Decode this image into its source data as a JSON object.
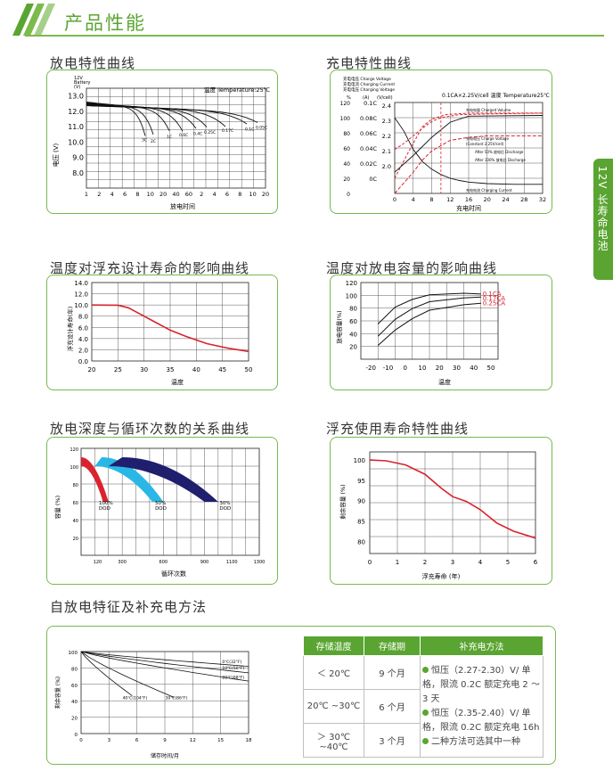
{
  "header": {
    "title": "产品性能"
  },
  "side_tab": {
    "label": "12V 长寿命电池"
  },
  "sections": {
    "discharge": "放电特性曲线",
    "charge": "充电特性曲线",
    "temp_life": "温度对浮充设计寿命的影响曲线",
    "temp_capacity": "温度对放电容量的影响曲线",
    "dod_cycles": "放电深度与循环次数的关系曲线",
    "float_life": "浮充使用寿命特性曲线",
    "self_discharge": "自放电特征及补充电方法"
  },
  "discharge_chart": {
    "corner_label": [
      "12V",
      "Battery",
      "(V)"
    ],
    "temp_note": "温度 Temperature:25℃",
    "ylabel": "电压 (V)",
    "xlabel": "放电时间",
    "y_ticks": [
      "13.0",
      "12.0",
      "11.0",
      "10.0",
      "9.0",
      "8.0"
    ],
    "x_ticks": [
      "1",
      "2",
      "4",
      "6",
      "8",
      "10",
      "20",
      "40",
      "60",
      "2",
      "4",
      "6",
      "8",
      "10",
      "20"
    ],
    "curve_labels": [
      "3C",
      "2C",
      "1C",
      "0.6C",
      "0.4C",
      "0.25C",
      "0.17C",
      "0.1C",
      "0.05C"
    ]
  },
  "charge_chart": {
    "axis_headers": [
      "充电电压 Charge Voltage",
      "充电电流 Charging Current",
      "充电电压 Charging Voltage"
    ],
    "unit_labels": [
      "%",
      "(A)",
      "(V/cell)"
    ],
    "note": "0.1CA×2.25V/cell  温度 Temperature25℃",
    "xlabel": "充电时间",
    "pct_ticks": [
      "120",
      "100",
      "80",
      "60",
      "40",
      "20",
      "0"
    ],
    "amp_ticks": [
      "0.1C",
      "0.08C",
      "0.06C",
      "0.04C",
      "0.02C",
      "0C"
    ],
    "volt_ticks": [
      "2.4",
      "2.3",
      "2.2",
      "2.1",
      "2.0"
    ],
    "x_ticks": [
      "0",
      "4",
      "8",
      "12",
      "16",
      "20",
      "24",
      "28",
      "32"
    ],
    "legend": [
      "充电电量 Charged Volume",
      "充电电压 Charge Voltage",
      "(Constant 2.25V/cell)",
      "After 50% 放电后 Discharge",
      "After 100% 放电后 Discharge",
      "充电电流 Charging Current"
    ]
  },
  "temp_life_chart": {
    "ylabel": "浮充设计寿命(年)",
    "xlabel": "温度",
    "y_ticks": [
      "14.0",
      "12.0",
      "10.0",
      "8.0",
      "6.0",
      "4.0",
      "2.0",
      "0.0"
    ],
    "x_ticks": [
      "20",
      "25",
      "30",
      "35",
      "40",
      "45",
      "50"
    ]
  },
  "temp_cap_chart": {
    "ylabel": "放电容量(%)",
    "xlabel": "温度",
    "y_ticks": [
      "120",
      "100",
      "80",
      "60",
      "40",
      "20"
    ],
    "x_ticks": [
      "-20",
      "-10",
      "0",
      "10",
      "20",
      "30",
      "40",
      "50"
    ],
    "curve_labels": [
      "0.1CA",
      "0.17CA",
      "0.25CA"
    ]
  },
  "dod_chart": {
    "ylabel": "容量 (%)",
    "xlabel": "循环次数",
    "y_ticks": [
      "120",
      "100",
      "80",
      "60",
      "40",
      "20"
    ],
    "x_ticks": [
      "100",
      "200",
      "300",
      "400",
      "500",
      "600",
      "700",
      "800",
      "900",
      "1000",
      "1100",
      "1200",
      "1300"
    ],
    "x_tick_labels": [
      "120",
      "300",
      "600",
      "900",
      "1100",
      "1300"
    ],
    "labels": [
      {
        "pct": "100%",
        "dod": "DOD"
      },
      {
        "pct": "50%",
        "dod": "DOD"
      },
      {
        "pct": "30%",
        "dod": "DOD"
      }
    ]
  },
  "float_chart": {
    "ylabel": "剩余容量 (%)",
    "xlabel": "浮充寿命 (年)",
    "y_ticks": [
      "100",
      "95",
      "90",
      "85",
      "80"
    ],
    "x_ticks": [
      "0",
      "1",
      "2",
      "3",
      "4",
      "5",
      "6"
    ]
  },
  "self_chart": {
    "ylabel": "剩余容量 (%)",
    "xlabel": "储存时间/月",
    "y_ticks": [
      "100",
      "80",
      "60",
      "40",
      "20",
      "0"
    ],
    "x_ticks": [
      "0",
      "3",
      "6",
      "9",
      "12",
      "15",
      "18"
    ],
    "curve_labels": [
      "0℃(32°F)",
      "10℃(50°F)",
      "20℃(68°F)",
      "30℃(86°F)",
      "40℃(104°F)"
    ]
  },
  "storage_table": {
    "headers": [
      "存储温度",
      "存储期",
      "补充电方法"
    ],
    "rows": [
      {
        "temp": "＜ 20℃",
        "period": "9 个月"
      },
      {
        "temp": "20℃ ~30℃",
        "period": "6 个月"
      },
      {
        "temp": "＞ 30℃ ~40℃",
        "period": "3 个月"
      }
    ],
    "methods": [
      "恒压（2.27-2.30）V/ 单格，限流 0.2C 额定充电 2 ～ 3 天",
      "恒压（2.35-2.40）V/ 单格，限流 0.2C 额定充电 16h",
      "二种方法可选其中一种"
    ]
  },
  "colors": {
    "accent": "#5aa531",
    "panel_border": "#79b850",
    "curve_red": "#d9232e",
    "cyan": "#2ab7e6",
    "navy": "#1f1f6e"
  }
}
